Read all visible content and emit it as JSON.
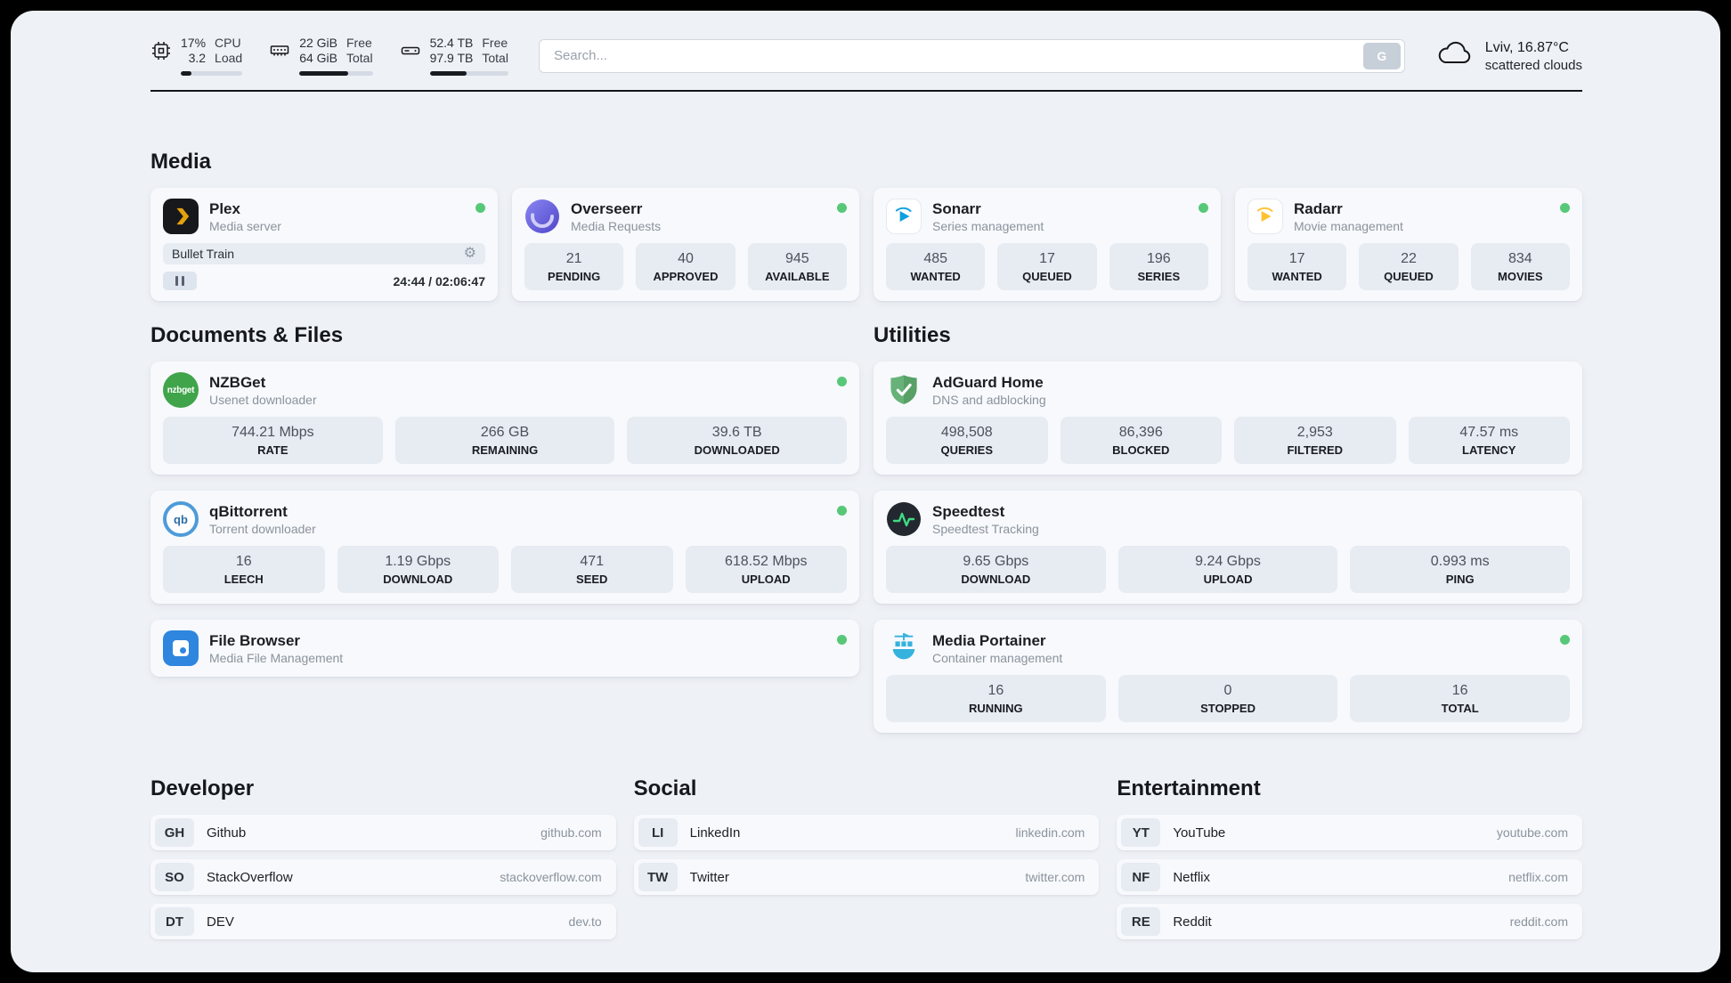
{
  "header": {
    "cpu": {
      "percent": "17%",
      "load": "3.2",
      "label_top": "CPU",
      "label_bottom": "Load",
      "bar_percent": 17
    },
    "ram": {
      "free": "22 GiB",
      "total": "64 GiB",
      "label_top": "Free",
      "label_bottom": "Total",
      "bar_percent": 66
    },
    "disk": {
      "free": "52.4 TB",
      "total": "97.9 TB",
      "label_top": "Free",
      "label_bottom": "Total",
      "bar_percent": 47
    },
    "search": {
      "placeholder": "Search...",
      "button": "G"
    },
    "weather": {
      "location": "Lviv, 16.87°C",
      "condition": "scattered clouds"
    }
  },
  "media": {
    "title": "Media",
    "plex": {
      "name": "Plex",
      "subtitle": "Media server",
      "now_playing": {
        "title": "Bullet Train",
        "time": "24:44 / 02:06:47"
      }
    },
    "overseerr": {
      "name": "Overseerr",
      "subtitle": "Media Requests",
      "stats": [
        {
          "value": "21",
          "label": "PENDING"
        },
        {
          "value": "40",
          "label": "APPROVED"
        },
        {
          "value": "945",
          "label": "AVAILABLE"
        }
      ]
    },
    "sonarr": {
      "name": "Sonarr",
      "subtitle": "Series management",
      "stats": [
        {
          "value": "485",
          "label": "WANTED"
        },
        {
          "value": "17",
          "label": "QUEUED"
        },
        {
          "value": "196",
          "label": "SERIES"
        }
      ]
    },
    "radarr": {
      "name": "Radarr",
      "subtitle": "Movie management",
      "stats": [
        {
          "value": "17",
          "label": "WANTED"
        },
        {
          "value": "22",
          "label": "QUEUED"
        },
        {
          "value": "834",
          "label": "MOVIES"
        }
      ]
    }
  },
  "documents": {
    "title": "Documents & Files",
    "nzbget": {
      "name": "NZBGet",
      "subtitle": "Usenet downloader",
      "icon_text": "nzbget",
      "stats": [
        {
          "value": "744.21 Mbps",
          "label": "RATE"
        },
        {
          "value": "266 GB",
          "label": "REMAINING"
        },
        {
          "value": "39.6 TB",
          "label": "DOWNLOADED"
        }
      ]
    },
    "qbittorrent": {
      "name": "qBittorrent",
      "subtitle": "Torrent downloader",
      "icon_text": "qb",
      "stats": [
        {
          "value": "16",
          "label": "LEECH"
        },
        {
          "value": "1.19 Gbps",
          "label": "DOWNLOAD"
        },
        {
          "value": "471",
          "label": "SEED"
        },
        {
          "value": "618.52 Mbps",
          "label": "UPLOAD"
        }
      ]
    },
    "filebrowser": {
      "name": "File Browser",
      "subtitle": "Media File Management"
    }
  },
  "utilities": {
    "title": "Utilities",
    "adguard": {
      "name": "AdGuard Home",
      "subtitle": "DNS and adblocking",
      "stats": [
        {
          "value": "498,508",
          "label": "QUERIES"
        },
        {
          "value": "86,396",
          "label": "BLOCKED"
        },
        {
          "value": "2,953",
          "label": "FILTERED"
        },
        {
          "value": "47.57 ms",
          "label": "LATENCY"
        }
      ]
    },
    "speedtest": {
      "name": "Speedtest",
      "subtitle": "Speedtest Tracking",
      "stats": [
        {
          "value": "9.65 Gbps",
          "label": "DOWNLOAD"
        },
        {
          "value": "9.24 Gbps",
          "label": "UPLOAD"
        },
        {
          "value": "0.993 ms",
          "label": "PING"
        }
      ]
    },
    "portainer": {
      "name": "Media Portainer",
      "subtitle": "Container management",
      "stats": [
        {
          "value": "16",
          "label": "RUNNING"
        },
        {
          "value": "0",
          "label": "STOPPED"
        },
        {
          "value": "16",
          "label": "TOTAL"
        }
      ]
    }
  },
  "bookmarks": {
    "developer": {
      "title": "Developer",
      "items": [
        {
          "abbr": "GH",
          "name": "Github",
          "url": "github.com"
        },
        {
          "abbr": "SO",
          "name": "StackOverflow",
          "url": "stackoverflow.com"
        },
        {
          "abbr": "DT",
          "name": "DEV",
          "url": "dev.to"
        }
      ]
    },
    "social": {
      "title": "Social",
      "items": [
        {
          "abbr": "LI",
          "name": "LinkedIn",
          "url": "linkedin.com"
        },
        {
          "abbr": "TW",
          "name": "Twitter",
          "url": "twitter.com"
        }
      ]
    },
    "entertainment": {
      "title": "Entertainment",
      "items": [
        {
          "abbr": "YT",
          "name": "YouTube",
          "url": "youtube.com"
        },
        {
          "abbr": "NF",
          "name": "Netflix",
          "url": "netflix.com"
        },
        {
          "abbr": "RE",
          "name": "Reddit",
          "url": "reddit.com"
        }
      ]
    }
  },
  "colors": {
    "accent_green": "#57c878",
    "plex_orange": "#e5a00d",
    "sonarr_blue": "#0ea0e0",
    "radarr_amber": "#ffc230"
  }
}
